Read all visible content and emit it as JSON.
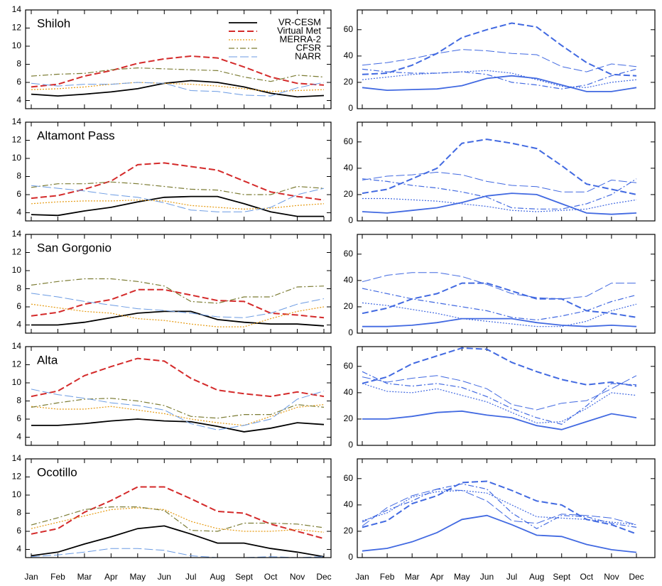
{
  "chart_data": [
    {
      "type": "line",
      "title": "Shiloh",
      "ylim": [
        3.1,
        14
      ],
      "yticks": [
        4,
        6,
        8,
        10,
        12,
        14
      ],
      "legend": "upper right",
      "series": [
        {
          "name": "VR-CESM",
          "color": "#000000",
          "dash": "solid",
          "values": [
            4.7,
            4.5,
            4.7,
            4.95,
            5.3,
            5.9,
            6.2,
            6.0,
            5.5,
            4.8,
            4.4,
            4.55
          ]
        },
        {
          "name": "Virtual Met",
          "color": "#d42a2a",
          "dash": "dashed",
          "values": [
            5.5,
            5.8,
            6.7,
            7.3,
            8.1,
            8.6,
            8.9,
            8.7,
            7.7,
            6.6,
            5.9,
            5.7
          ]
        },
        {
          "name": "MERRA-2",
          "color": "#e69a10",
          "dash": "dotted",
          "values": [
            5.2,
            5.3,
            5.5,
            5.8,
            6.0,
            5.9,
            5.8,
            5.6,
            5.3,
            5.0,
            5.1,
            5.2
          ]
        },
        {
          "name": "CFSR",
          "color": "#7c7c34",
          "dash": "dashdot",
          "values": [
            6.7,
            6.9,
            7.0,
            7.4,
            7.6,
            7.5,
            7.4,
            7.3,
            6.6,
            6.1,
            6.8,
            6.6
          ]
        },
        {
          "name": "NARR",
          "color": "#6b9be3",
          "dash": "longdash",
          "values": [
            5.9,
            5.6,
            5.8,
            5.8,
            6.0,
            5.9,
            5.1,
            5.0,
            4.6,
            4.5,
            5.4,
            6.0
          ]
        }
      ]
    },
    {
      "type": "line",
      "ylim": [
        0,
        75
      ],
      "yticks": [
        0,
        20,
        40,
        60
      ],
      "series": [
        {
          "color": "#4169e1",
          "dash": "solid",
          "values": [
            16,
            14,
            14.5,
            15,
            17.5,
            23,
            25,
            23,
            18,
            13,
            13,
            16
          ]
        },
        {
          "color": "#4169e1",
          "dash": "dashed",
          "values": [
            26,
            27,
            33,
            42,
            54,
            60,
            65,
            62,
            48,
            35,
            26,
            25
          ]
        },
        {
          "color": "#4169e1",
          "dash": "dotted",
          "values": [
            22,
            24,
            26,
            27,
            28,
            29,
            27,
            22,
            17,
            16,
            20,
            22
          ]
        },
        {
          "color": "#4169e1",
          "dash": "dashdot",
          "values": [
            30,
            28,
            27,
            27,
            28,
            26,
            20,
            18,
            15,
            18,
            25,
            30
          ]
        },
        {
          "color": "#4169e1",
          "dash": "longdash",
          "values": [
            33,
            35,
            38,
            42,
            45,
            44,
            42,
            41,
            32,
            28,
            34,
            32
          ]
        }
      ]
    },
    {
      "type": "line",
      "title": "Altamont Pass",
      "ylim": [
        3.1,
        14
      ],
      "yticks": [
        4,
        6,
        8,
        10,
        12,
        14
      ],
      "series": [
        {
          "color": "#000000",
          "dash": "solid",
          "values": [
            3.8,
            3.7,
            4.2,
            4.6,
            5.2,
            5.7,
            5.8,
            5.8,
            5.0,
            4.1,
            3.6,
            3.6
          ]
        },
        {
          "color": "#d42a2a",
          "dash": "dashed",
          "values": [
            5.6,
            5.9,
            6.6,
            7.5,
            9.3,
            9.5,
            9.1,
            8.7,
            7.5,
            6.3,
            5.8,
            5.4
          ]
        },
        {
          "color": "#e69a10",
          "dash": "dotted",
          "values": [
            5.0,
            5.2,
            5.3,
            5.3,
            5.4,
            5.3,
            4.8,
            4.6,
            4.4,
            4.5,
            4.8,
            5.0
          ]
        },
        {
          "color": "#7c7c34",
          "dash": "dashdot",
          "values": [
            6.8,
            7.2,
            7.2,
            7.4,
            7.2,
            6.9,
            6.6,
            6.5,
            6.0,
            6.0,
            6.9,
            6.7
          ]
        },
        {
          "color": "#6b9be3",
          "dash": "longdash",
          "values": [
            7.0,
            6.7,
            6.4,
            6.0,
            5.7,
            5.1,
            4.3,
            4.1,
            4.1,
            4.6,
            6.0,
            6.7
          ]
        }
      ]
    },
    {
      "type": "line",
      "ylim": [
        0,
        75
      ],
      "yticks": [
        0,
        20,
        40,
        60
      ],
      "series": [
        {
          "color": "#4169e1",
          "dash": "solid",
          "values": [
            7,
            6,
            8,
            10,
            14,
            19,
            21,
            20,
            13,
            6,
            5,
            6
          ]
        },
        {
          "color": "#4169e1",
          "dash": "dashed",
          "values": [
            21,
            24,
            32,
            40,
            59,
            62,
            59,
            55,
            42,
            28,
            24,
            20
          ]
        },
        {
          "color": "#4169e1",
          "dash": "dotted",
          "values": [
            17,
            17,
            16,
            15,
            13,
            11,
            8,
            7,
            8,
            9,
            13,
            16
          ]
        },
        {
          "color": "#4169e1",
          "dash": "dashdot",
          "values": [
            32,
            30,
            27,
            25,
            22,
            18,
            10,
            9,
            9,
            13,
            20,
            32
          ]
        },
        {
          "color": "#4169e1",
          "dash": "longdash",
          "values": [
            31,
            34,
            35,
            37,
            35,
            30,
            27,
            26,
            22,
            22,
            31,
            29
          ]
        }
      ]
    },
    {
      "type": "line",
      "title": "San Gorgonio",
      "ylim": [
        3.1,
        14
      ],
      "yticks": [
        4,
        6,
        8,
        10,
        12,
        14
      ],
      "series": [
        {
          "color": "#000000",
          "dash": "solid",
          "values": [
            4.0,
            4.0,
            4.3,
            4.8,
            5.3,
            5.5,
            5.5,
            4.6,
            4.3,
            4.1,
            4.1,
            3.9
          ]
        },
        {
          "color": "#d42a2a",
          "dash": "dashed",
          "values": [
            5.0,
            5.4,
            6.3,
            6.8,
            7.9,
            7.9,
            7.3,
            6.7,
            6.6,
            5.3,
            5.1,
            4.8
          ]
        },
        {
          "color": "#e69a10",
          "dash": "dotted",
          "values": [
            6.3,
            5.9,
            5.5,
            5.3,
            4.7,
            4.5,
            4.1,
            3.8,
            3.8,
            4.7,
            5.5,
            6.0
          ]
        },
        {
          "color": "#7c7c34",
          "dash": "dashdot",
          "values": [
            8.4,
            8.8,
            9.1,
            9.1,
            8.8,
            8.3,
            6.6,
            6.4,
            7.1,
            7.1,
            8.2,
            8.3
          ]
        },
        {
          "color": "#6b9be3",
          "dash": "longdash",
          "values": [
            7.5,
            7.1,
            6.6,
            6.2,
            5.8,
            5.6,
            5.3,
            4.9,
            4.8,
            5.3,
            6.3,
            6.9
          ]
        }
      ]
    },
    {
      "type": "line",
      "ylim": [
        0,
        75
      ],
      "yticks": [
        0,
        20,
        40,
        60
      ],
      "series": [
        {
          "color": "#4169e1",
          "dash": "solid",
          "values": [
            5,
            5,
            6,
            8,
            11,
            11,
            11,
            8,
            6,
            5,
            6,
            5
          ]
        },
        {
          "color": "#4169e1",
          "dash": "dashed",
          "values": [
            15,
            19,
            26,
            30,
            38,
            38,
            32,
            26,
            26,
            17,
            15,
            12
          ]
        },
        {
          "color": "#4169e1",
          "dash": "dotted",
          "values": [
            23,
            21,
            18,
            15,
            11,
            9,
            7,
            5,
            5,
            9,
            17,
            22
          ]
        },
        {
          "color": "#4169e1",
          "dash": "dashdot",
          "values": [
            34,
            30,
            26,
            23,
            20,
            17,
            12,
            10,
            13,
            17,
            24,
            29
          ]
        },
        {
          "color": "#4169e1",
          "dash": "longdash",
          "values": [
            39,
            44,
            46,
            46,
            43,
            37,
            30,
            27,
            26,
            28,
            38,
            38
          ]
        }
      ]
    },
    {
      "type": "line",
      "title": "Alta",
      "ylim": [
        3.1,
        14
      ],
      "yticks": [
        4,
        6,
        8,
        10,
        12,
        14
      ],
      "series": [
        {
          "color": "#000000",
          "dash": "solid",
          "values": [
            5.3,
            5.3,
            5.5,
            5.8,
            6.0,
            5.8,
            5.7,
            5.2,
            4.6,
            5.0,
            5.6,
            5.4
          ]
        },
        {
          "color": "#d42a2a",
          "dash": "dashed",
          "values": [
            8.5,
            9.1,
            10.8,
            11.8,
            12.7,
            12.4,
            10.5,
            9.2,
            8.8,
            8.5,
            9.0,
            8.5
          ]
        },
        {
          "color": "#e69a10",
          "dash": "dotted",
          "values": [
            7.4,
            7.1,
            7.1,
            7.4,
            7.0,
            6.6,
            6.0,
            5.6,
            5.3,
            6.3,
            7.3,
            7.6
          ]
        },
        {
          "color": "#7c7c34",
          "dash": "dashdot",
          "values": [
            7.3,
            7.8,
            8.2,
            8.3,
            8.0,
            7.5,
            6.3,
            6.1,
            6.5,
            6.5,
            7.6,
            7.3
          ]
        },
        {
          "color": "#6b9be3",
          "dash": "longdash",
          "values": [
            9.3,
            8.7,
            8.3,
            7.8,
            7.5,
            7.0,
            5.5,
            4.8,
            5.3,
            6.0,
            8.2,
            9.1
          ]
        }
      ]
    },
    {
      "type": "line",
      "ylim": [
        0,
        75
      ],
      "yticks": [
        0,
        20,
        40,
        60
      ],
      "series": [
        {
          "color": "#4169e1",
          "dash": "solid",
          "values": [
            20,
            20,
            22,
            25,
            26,
            23,
            21,
            15,
            12,
            18,
            24,
            21
          ]
        },
        {
          "color": "#4169e1",
          "dash": "dashed",
          "values": [
            47,
            52,
            62,
            68,
            74,
            73,
            63,
            56,
            50,
            46,
            48,
            45
          ]
        },
        {
          "color": "#4169e1",
          "dash": "dotted",
          "values": [
            47,
            41,
            40,
            43,
            38,
            33,
            25,
            17,
            18,
            28,
            40,
            38
          ]
        },
        {
          "color": "#4169e1",
          "dash": "dashdot",
          "values": [
            56,
            47,
            45,
            47,
            44,
            37,
            28,
            21,
            16,
            30,
            47,
            46
          ]
        },
        {
          "color": "#4169e1",
          "dash": "longdash",
          "values": [
            52,
            48,
            51,
            53,
            49,
            43,
            31,
            27,
            32,
            34,
            43,
            53
          ]
        }
      ]
    },
    {
      "type": "line",
      "title": "Ocotillo",
      "ylim": [
        3.1,
        14
      ],
      "yticks": [
        4,
        6,
        8,
        10,
        12,
        14
      ],
      "categories": [
        "Jan",
        "Feb",
        "Mar",
        "Apr",
        "May",
        "Jun",
        "Jul",
        "Aug",
        "Sept",
        "Oct",
        "Nov",
        "Dec"
      ],
      "series": [
        {
          "color": "#000000",
          "dash": "solid",
          "values": [
            3.3,
            3.7,
            4.6,
            5.4,
            6.3,
            6.6,
            5.7,
            4.7,
            4.7,
            4.1,
            3.7,
            3.2
          ]
        },
        {
          "color": "#d42a2a",
          "dash": "dashed",
          "values": [
            5.7,
            6.3,
            8.1,
            9.4,
            10.9,
            10.9,
            9.6,
            8.2,
            8.0,
            6.8,
            6.0,
            5.2
          ]
        },
        {
          "color": "#e69a10",
          "dash": "dotted",
          "values": [
            6.3,
            7.0,
            7.7,
            8.4,
            8.6,
            8.4,
            7.1,
            6.3,
            6.0,
            6.0,
            6.2,
            5.9
          ]
        },
        {
          "color": "#7c7c34",
          "dash": "dashdot",
          "values": [
            6.7,
            7.5,
            8.4,
            8.7,
            8.7,
            8.3,
            6.1,
            6.0,
            6.9,
            6.9,
            6.8,
            6.4
          ]
        },
        {
          "color": "#6b9be3",
          "dash": "longdash",
          "values": [
            3.2,
            3.4,
            3.7,
            4.1,
            4.1,
            3.9,
            3.3,
            3.1,
            3.1,
            3.2,
            3.1,
            3.2
          ]
        }
      ]
    },
    {
      "type": "line",
      "ylim": [
        0,
        75
      ],
      "yticks": [
        0,
        20,
        40,
        60
      ],
      "categories": [
        "Jan",
        "Feb",
        "Mar",
        "Apr",
        "May",
        "Jun",
        "Jul",
        "Aug",
        "Sept",
        "Oct",
        "Nov",
        "Dec"
      ],
      "series": [
        {
          "color": "#4169e1",
          "dash": "solid",
          "values": [
            5,
            7,
            12,
            19,
            29,
            32,
            25,
            17,
            16,
            10,
            6,
            4
          ]
        },
        {
          "color": "#4169e1",
          "dash": "dashed",
          "values": [
            23,
            28,
            41,
            47,
            57,
            58,
            51,
            43,
            40,
            29,
            25,
            18
          ]
        },
        {
          "color": "#4169e1",
          "dash": "dotted",
          "values": [
            28,
            34,
            46,
            50,
            51,
            49,
            40,
            31,
            30,
            29,
            27,
            25
          ]
        },
        {
          "color": "#4169e1",
          "dash": "dashdot",
          "values": [
            27,
            36,
            43,
            52,
            56,
            52,
            34,
            22,
            32,
            31,
            26,
            23
          ]
        },
        {
          "color": "#4169e1",
          "dash": "longdash",
          "values": [
            24,
            38,
            47,
            52,
            51,
            43,
            28,
            26,
            33,
            32,
            30,
            25
          ]
        }
      ]
    }
  ]
}
